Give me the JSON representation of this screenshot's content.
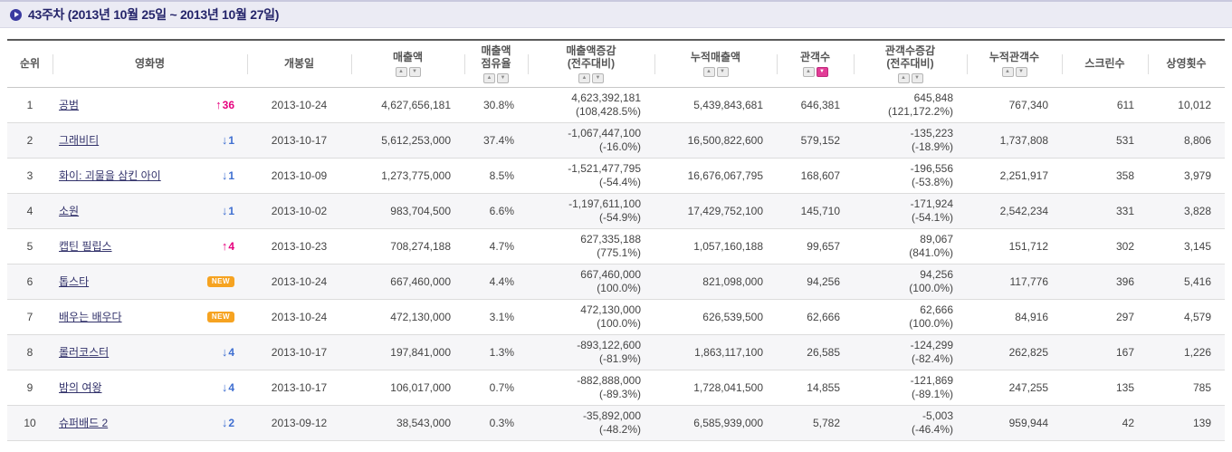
{
  "page": {
    "title": "43주차 (2013년 10월 25일 ~ 2013년 10월 27일)"
  },
  "labels": {
    "new_badge": "NEW"
  },
  "colors": {
    "rank_up": "#e6007e",
    "rank_down": "#3f6fd1",
    "new_badge_bg": "#f6a321",
    "active_sort_bg": "#e23c96",
    "title_text": "#24246a",
    "title_bar_bg": "#ebebf4"
  },
  "table": {
    "columns": [
      {
        "key": "rank",
        "lines": [
          "순위"
        ],
        "sortable": false
      },
      {
        "key": "title",
        "lines": [
          "영화명"
        ],
        "sortable": false
      },
      {
        "key": "release",
        "lines": [
          "개봉일"
        ],
        "sortable": false
      },
      {
        "key": "sales",
        "lines": [
          "매출액"
        ],
        "sortable": true
      },
      {
        "key": "sales_share",
        "lines": [
          "매출액",
          "점유율"
        ],
        "sortable": true
      },
      {
        "key": "sales_change",
        "lines": [
          "매출액증감",
          "(전주대비)"
        ],
        "sortable": true
      },
      {
        "key": "sales_total",
        "lines": [
          "누적매출액"
        ],
        "sortable": true
      },
      {
        "key": "audience",
        "lines": [
          "관객수"
        ],
        "sortable": true,
        "active_sort": "down"
      },
      {
        "key": "audience_change",
        "lines": [
          "관객수증감",
          "(전주대비)"
        ],
        "sortable": true
      },
      {
        "key": "audience_total",
        "lines": [
          "누적관객수"
        ],
        "sortable": true
      },
      {
        "key": "screens",
        "lines": [
          "스크린수"
        ],
        "sortable": false
      },
      {
        "key": "showings",
        "lines": [
          "상영횟수"
        ],
        "sortable": false
      }
    ],
    "rows": [
      {
        "rank": "1",
        "title": "공범",
        "change_dir": "up",
        "change_val": "36",
        "release": "2013-10-24",
        "sales": "4,627,656,181",
        "sales_share": "30.8%",
        "sales_change": [
          "4,623,392,181",
          "(108,428.5%)"
        ],
        "sales_total": "5,439,843,681",
        "audience": "646,381",
        "audience_change": [
          "645,848",
          "(121,172.2%)"
        ],
        "audience_total": "767,340",
        "screens": "611",
        "showings": "10,012"
      },
      {
        "rank": "2",
        "title": "그래비티",
        "change_dir": "down",
        "change_val": "1",
        "release": "2013-10-17",
        "sales": "5,612,253,000",
        "sales_share": "37.4%",
        "sales_change": [
          "-1,067,447,100",
          "(-16.0%)"
        ],
        "sales_total": "16,500,822,600",
        "audience": "579,152",
        "audience_change": [
          "-135,223",
          "(-18.9%)"
        ],
        "audience_total": "1,737,808",
        "screens": "531",
        "showings": "8,806"
      },
      {
        "rank": "3",
        "title": "화이: 괴물을 삼킨 아이",
        "change_dir": "down",
        "change_val": "1",
        "release": "2013-10-09",
        "sales": "1,273,775,000",
        "sales_share": "8.5%",
        "sales_change": [
          "-1,521,477,795",
          "(-54.4%)"
        ],
        "sales_total": "16,676,067,795",
        "audience": "168,607",
        "audience_change": [
          "-196,556",
          "(-53.8%)"
        ],
        "audience_total": "2,251,917",
        "screens": "358",
        "showings": "3,979"
      },
      {
        "rank": "4",
        "title": "소원",
        "change_dir": "down",
        "change_val": "1",
        "release": "2013-10-02",
        "sales": "983,704,500",
        "sales_share": "6.6%",
        "sales_change": [
          "-1,197,611,100",
          "(-54.9%)"
        ],
        "sales_total": "17,429,752,100",
        "audience": "145,710",
        "audience_change": [
          "-171,924",
          "(-54.1%)"
        ],
        "audience_total": "2,542,234",
        "screens": "331",
        "showings": "3,828"
      },
      {
        "rank": "5",
        "title": "캡틴 필립스",
        "change_dir": "up",
        "change_val": "4",
        "release": "2013-10-23",
        "sales": "708,274,188",
        "sales_share": "4.7%",
        "sales_change": [
          "627,335,188",
          "(775.1%)"
        ],
        "sales_total": "1,057,160,188",
        "audience": "99,657",
        "audience_change": [
          "89,067",
          "(841.0%)"
        ],
        "audience_total": "151,712",
        "screens": "302",
        "showings": "3,145"
      },
      {
        "rank": "6",
        "title": "톱스타",
        "change_dir": "new",
        "change_val": "",
        "release": "2013-10-24",
        "sales": "667,460,000",
        "sales_share": "4.4%",
        "sales_change": [
          "667,460,000",
          "(100.0%)"
        ],
        "sales_total": "821,098,000",
        "audience": "94,256",
        "audience_change": [
          "94,256",
          "(100.0%)"
        ],
        "audience_total": "117,776",
        "screens": "396",
        "showings": "5,416"
      },
      {
        "rank": "7",
        "title": "배우는 배우다",
        "change_dir": "new",
        "change_val": "",
        "release": "2013-10-24",
        "sales": "472,130,000",
        "sales_share": "3.1%",
        "sales_change": [
          "472,130,000",
          "(100.0%)"
        ],
        "sales_total": "626,539,500",
        "audience": "62,666",
        "audience_change": [
          "62,666",
          "(100.0%)"
        ],
        "audience_total": "84,916",
        "screens": "297",
        "showings": "4,579"
      },
      {
        "rank": "8",
        "title": "롤러코스터",
        "change_dir": "down",
        "change_val": "4",
        "release": "2013-10-17",
        "sales": "197,841,000",
        "sales_share": "1.3%",
        "sales_change": [
          "-893,122,600",
          "(-81.9%)"
        ],
        "sales_total": "1,863,117,100",
        "audience": "26,585",
        "audience_change": [
          "-124,299",
          "(-82.4%)"
        ],
        "audience_total": "262,825",
        "screens": "167",
        "showings": "1,226"
      },
      {
        "rank": "9",
        "title": "밤의 여왕",
        "change_dir": "down",
        "change_val": "4",
        "release": "2013-10-17",
        "sales": "106,017,000",
        "sales_share": "0.7%",
        "sales_change": [
          "-882,888,000",
          "(-89.3%)"
        ],
        "sales_total": "1,728,041,500",
        "audience": "14,855",
        "audience_change": [
          "-121,869",
          "(-89.1%)"
        ],
        "audience_total": "247,255",
        "screens": "135",
        "showings": "785"
      },
      {
        "rank": "10",
        "title": "슈퍼배드 2",
        "change_dir": "down",
        "change_val": "2",
        "release": "2013-09-12",
        "sales": "38,543,000",
        "sales_share": "0.3%",
        "sales_change": [
          "-35,892,000",
          "(-48.2%)"
        ],
        "sales_total": "6,585,939,000",
        "audience": "5,782",
        "audience_change": [
          "-5,003",
          "(-46.4%)"
        ],
        "audience_total": "959,944",
        "screens": "42",
        "showings": "139"
      }
    ]
  }
}
